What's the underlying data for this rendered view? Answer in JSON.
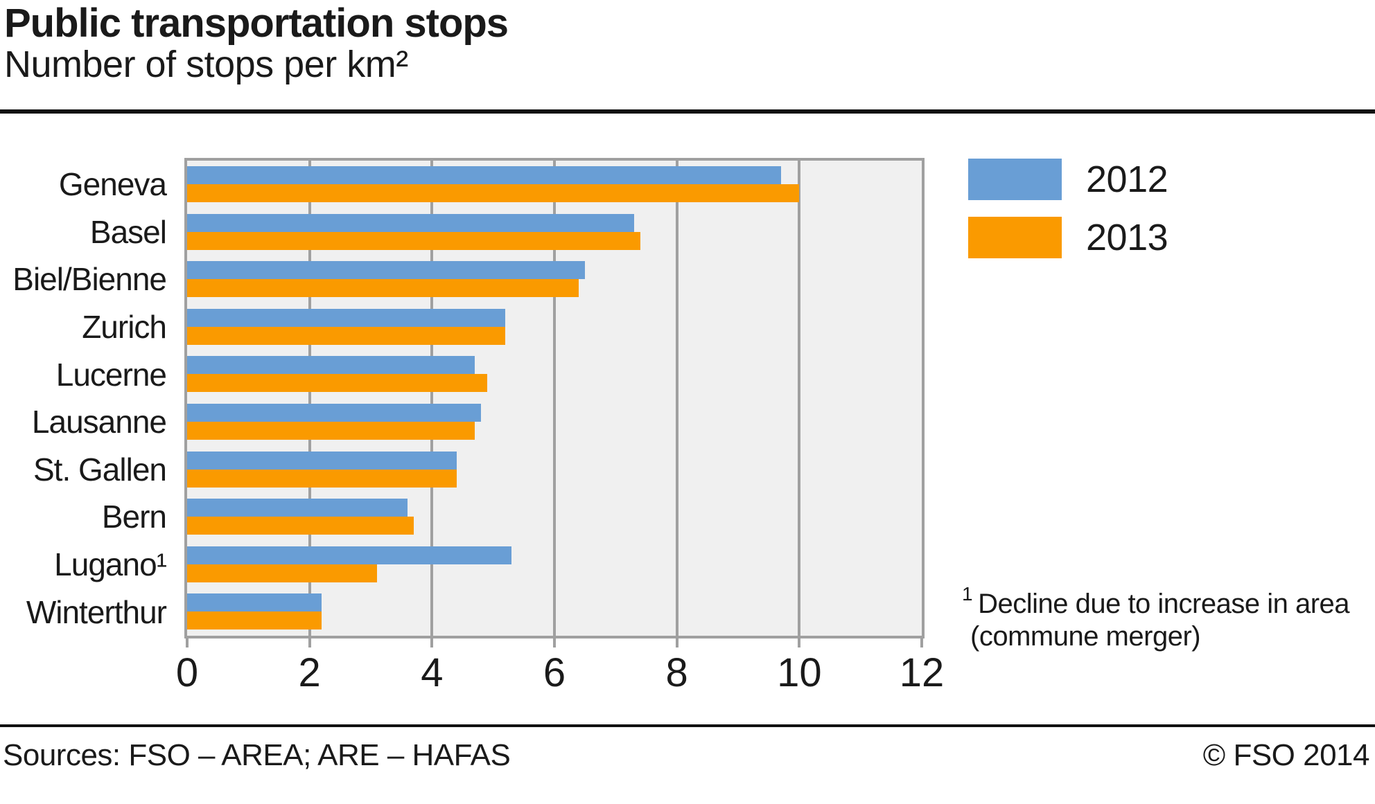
{
  "header": {
    "title": "Public transportation stops",
    "subtitle": "Number of stops per km²"
  },
  "footnote": {
    "marker": "1",
    "line1": "Decline due to increase in area",
    "line2": "(commune merger)"
  },
  "footer": {
    "sources": "Sources: FSO – AREA; ARE – HAFAS",
    "copyright": "© FSO 2014"
  },
  "chart_data": {
    "type": "bar",
    "orientation": "horizontal",
    "title": "Public transportation stops",
    "subtitle": "Number of stops per km²",
    "categories": [
      "Geneva",
      "Basel",
      "Biel/Bienne",
      "Zurich",
      "Lucerne",
      "Lausanne",
      "St. Gallen",
      "Bern",
      "Lugano¹",
      "Winterthur"
    ],
    "series": [
      {
        "name": "2012",
        "color": "#699ed5",
        "values": [
          9.7,
          7.3,
          6.5,
          5.2,
          4.7,
          4.8,
          4.4,
          3.6,
          5.3,
          2.2
        ]
      },
      {
        "name": "2013",
        "color": "#fa9a00",
        "values": [
          10.0,
          7.4,
          6.4,
          5.2,
          4.9,
          4.7,
          4.4,
          3.7,
          3.1,
          2.2
        ]
      }
    ],
    "xlim": [
      0,
      12
    ],
    "xticks": [
      0,
      2,
      4,
      6,
      8,
      10,
      12
    ],
    "grid": "vertical",
    "legend_position": "top-right-outside",
    "plot_bg": "#f0f0f0",
    "grid_color": "#a0a0a0",
    "text_color": "#1a1a1a"
  }
}
